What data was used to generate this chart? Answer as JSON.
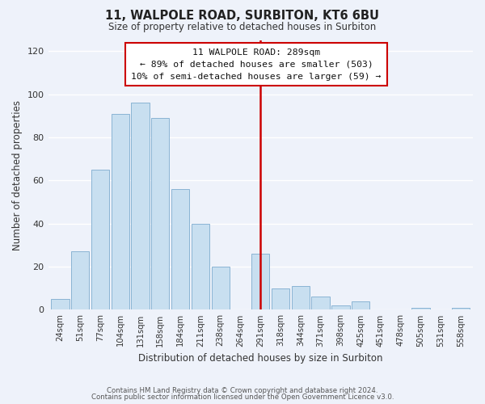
{
  "title": "11, WALPOLE ROAD, SURBITON, KT6 6BU",
  "subtitle": "Size of property relative to detached houses in Surbiton",
  "xlabel": "Distribution of detached houses by size in Surbiton",
  "ylabel": "Number of detached properties",
  "bar_labels": [
    "24sqm",
    "51sqm",
    "77sqm",
    "104sqm",
    "131sqm",
    "158sqm",
    "184sqm",
    "211sqm",
    "238sqm",
    "264sqm",
    "291sqm",
    "318sqm",
    "344sqm",
    "371sqm",
    "398sqm",
    "425sqm",
    "451sqm",
    "478sqm",
    "505sqm",
    "531sqm",
    "558sqm"
  ],
  "bar_values": [
    5,
    27,
    65,
    91,
    96,
    89,
    56,
    40,
    20,
    0,
    26,
    10,
    11,
    6,
    2,
    4,
    0,
    0,
    1,
    0,
    1
  ],
  "bar_color": "#c8dff0",
  "bar_edge_color": "#8ab4d4",
  "vline_index": 10,
  "vline_color": "#cc0000",
  "annotation_title": "11 WALPOLE ROAD: 289sqm",
  "annotation_line1": "← 89% of detached houses are smaller (503)",
  "annotation_line2": "10% of semi-detached houses are larger (59) →",
  "annotation_box_facecolor": "#ffffff",
  "annotation_box_edgecolor": "#cc0000",
  "ylim": [
    0,
    125
  ],
  "yticks": [
    0,
    20,
    40,
    60,
    80,
    100,
    120
  ],
  "footer1": "Contains HM Land Registry data © Crown copyright and database right 2024.",
  "footer2": "Contains public sector information licensed under the Open Government Licence v3.0.",
  "background_color": "#eef2fa",
  "grid_color": "#ffffff"
}
